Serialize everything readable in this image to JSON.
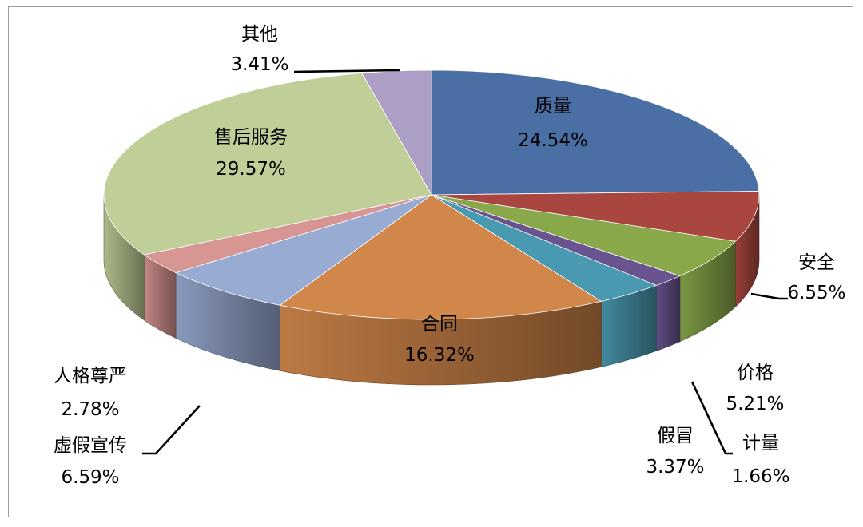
{
  "chart_data": {
    "type": "pie",
    "title": "",
    "legend": "none",
    "slices": [
      {
        "label": "质量",
        "value": 24.54,
        "value_label": "24.54%",
        "color": "#4a6fa5"
      },
      {
        "label": "安全",
        "value": 6.55,
        "value_label": "6.55%",
        "color": "#a9463f"
      },
      {
        "label": "价格",
        "value": 5.21,
        "value_label": "5.21%",
        "color": "#88a84a"
      },
      {
        "label": "计量",
        "value": 1.66,
        "value_label": "1.66%",
        "color": "#6a5490"
      },
      {
        "label": "假冒",
        "value": 3.37,
        "value_label": "3.37%",
        "color": "#4999b0"
      },
      {
        "label": "合同",
        "value": 16.32,
        "value_label": "16.32%",
        "color": "#d1864a"
      },
      {
        "label": "虚假宣传",
        "value": 6.59,
        "value_label": "6.59%",
        "color": "#98abd2"
      },
      {
        "label": "人格尊严",
        "value": 2.78,
        "value_label": "2.78%",
        "color": "#d79594"
      },
      {
        "label": "售后服务",
        "value": 29.57,
        "value_label": "29.57%",
        "color": "#c0cf98"
      },
      {
        "label": "其他",
        "value": 3.41,
        "value_label": "3.41%",
        "color": "#ad9ec6"
      }
    ]
  }
}
